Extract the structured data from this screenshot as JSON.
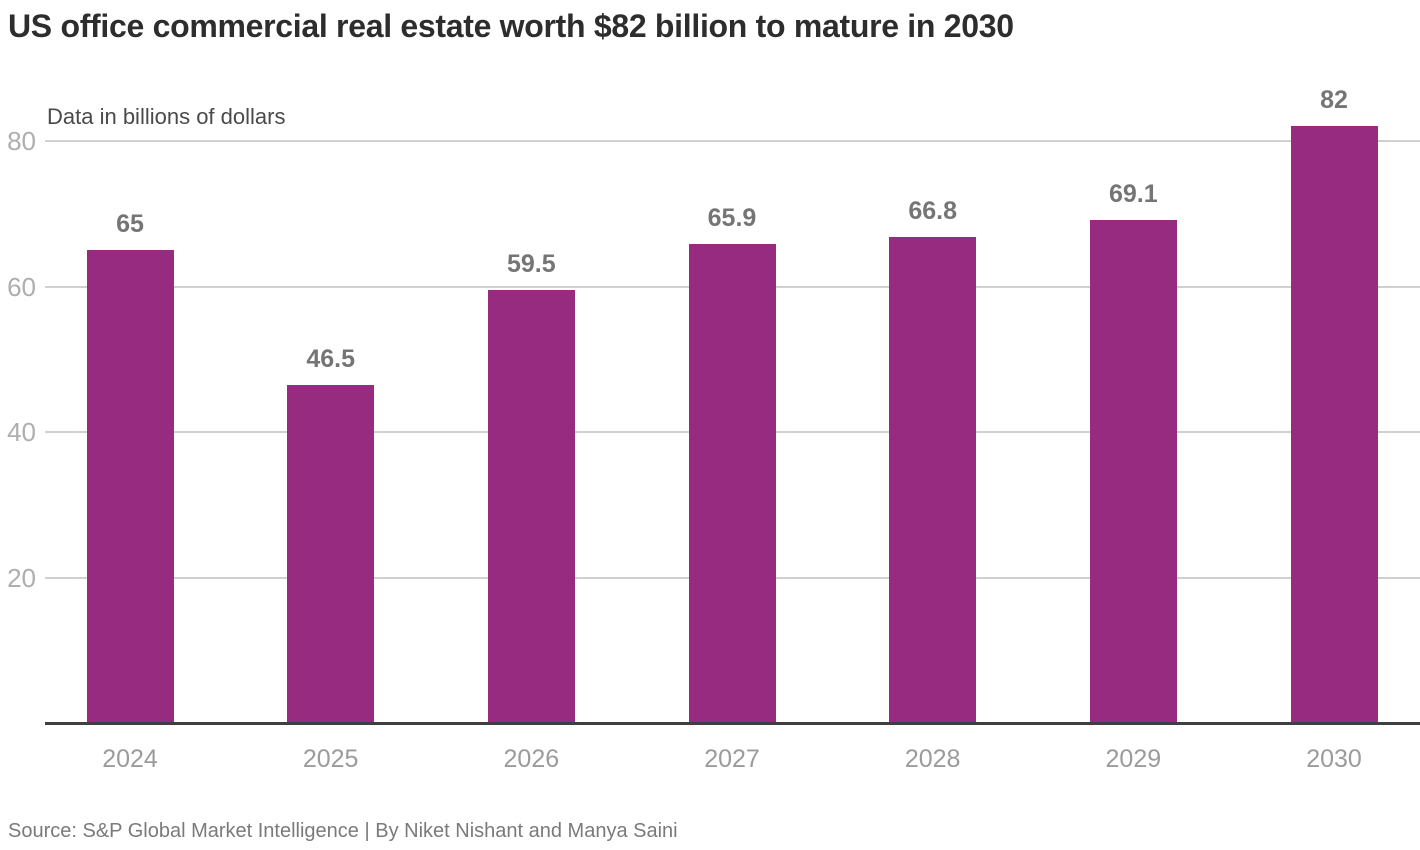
{
  "title": "US office commercial real estate worth $82 billion to mature in 2030",
  "subtitle": "Data in billions of dollars",
  "source_line": "Source: S&P Global Market Intelligence | By Niket Nishant and Manya Saini",
  "colors": {
    "bar": "#962b80",
    "title_text": "#2d2d2d",
    "subtitle_text": "#4a4a4a",
    "value_label": "#757575",
    "y_tick_label": "#aeaeae",
    "x_tick_label": "#9b9b9b",
    "gridline": "#d0d0d0",
    "axis_line": "#3f3f42",
    "background": "#ffffff"
  },
  "chart_data": {
    "type": "bar",
    "categories": [
      "2024",
      "2025",
      "2026",
      "2027",
      "2028",
      "2029",
      "2030"
    ],
    "values": [
      65,
      46.5,
      59.5,
      65.9,
      66.8,
      69.1,
      82
    ],
    "value_labels": [
      "65",
      "46.5",
      "59.5",
      "65.9",
      "66.8",
      "69.1",
      "82"
    ],
    "title": "US office commercial real estate worth $82 billion to mature in 2030",
    "subtitle": "Data in billions of dollars",
    "xlabel": "",
    "ylabel": "Data in billions of dollars",
    "ylim": [
      0,
      82
    ],
    "yticks": [
      20,
      40,
      60,
      80
    ],
    "grid": true,
    "legend": false,
    "bar_color": "#962b80",
    "source": "Source: S&P Global Market Intelligence | By Niket Nishant and Manya Saini"
  }
}
